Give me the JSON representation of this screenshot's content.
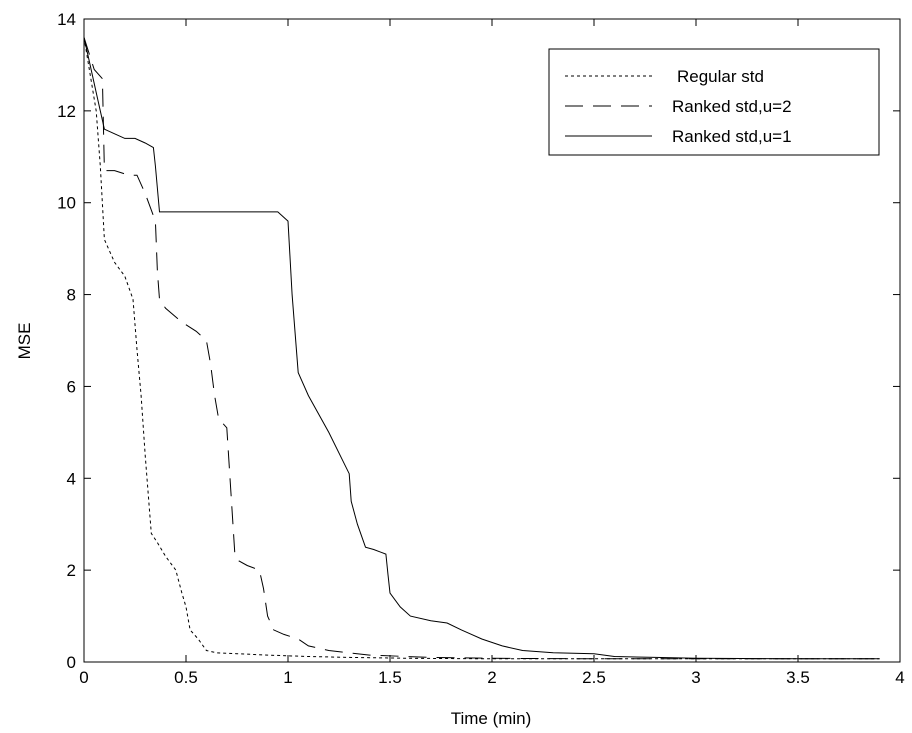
{
  "chart_data": {
    "type": "line",
    "xlabel": "Time (min)",
    "ylabel": "MSE",
    "xlim": [
      0,
      4
    ],
    "ylim": [
      0,
      14
    ],
    "x_ticks": [
      0,
      0.5,
      1,
      1.5,
      2,
      2.5,
      3,
      3.5,
      4
    ],
    "x_tick_labels": [
      "0",
      "0.5",
      "1",
      "1.5",
      "2",
      "2.5",
      "3",
      "3.5",
      "4"
    ],
    "y_ticks": [
      0,
      2,
      4,
      6,
      8,
      10,
      12,
      14
    ],
    "y_tick_labels": [
      "0",
      "2",
      "4",
      "6",
      "8",
      "10",
      "12",
      "14"
    ],
    "grid": false,
    "legend_position": "top-right",
    "series": [
      {
        "name": "Regular std",
        "line_style": "dotted",
        "color": "#000000",
        "x": [
          0,
          0.03,
          0.06,
          0.08,
          0.1,
          0.15,
          0.2,
          0.24,
          0.26,
          0.28,
          0.3,
          0.33,
          0.36,
          0.4,
          0.45,
          0.48,
          0.5,
          0.52,
          0.56,
          0.6,
          0.65,
          0.75,
          0.9,
          1.1,
          1.3,
          1.6,
          2.0,
          2.5,
          3.0,
          3.5,
          3.9
        ],
        "y": [
          13.6,
          12.8,
          12.0,
          10.8,
          9.2,
          8.7,
          8.4,
          7.9,
          6.8,
          5.8,
          4.5,
          2.8,
          2.6,
          2.3,
          2.0,
          1.5,
          1.2,
          0.7,
          0.5,
          0.25,
          0.2,
          0.18,
          0.15,
          0.12,
          0.1,
          0.08,
          0.07,
          0.07,
          0.07,
          0.07,
          0.07
        ]
      },
      {
        "name": "Ranked std,u=2",
        "line_style": "dashed",
        "color": "#000000",
        "x": [
          0,
          0.05,
          0.09,
          0.1,
          0.15,
          0.22,
          0.26,
          0.3,
          0.35,
          0.36,
          0.37,
          0.4,
          0.48,
          0.55,
          0.6,
          0.62,
          0.64,
          0.66,
          0.7,
          0.72,
          0.74,
          0.76,
          0.8,
          0.86,
          0.88,
          0.9,
          0.93,
          0.98,
          1.05,
          1.1,
          1.2,
          1.4,
          1.7,
          2.0,
          2.5,
          3.0,
          3.9
        ],
        "y": [
          13.6,
          12.9,
          12.7,
          10.7,
          10.7,
          10.6,
          10.6,
          10.2,
          9.6,
          8.5,
          7.9,
          7.7,
          7.4,
          7.2,
          7.0,
          6.5,
          5.8,
          5.3,
          5.1,
          3.7,
          2.3,
          2.2,
          2.1,
          2.0,
          1.6,
          1.0,
          0.7,
          0.6,
          0.5,
          0.35,
          0.25,
          0.15,
          0.1,
          0.08,
          0.07,
          0.07,
          0.07
        ]
      },
      {
        "name": "Ranked std,u=1",
        "line_style": "solid",
        "color": "#000000",
        "x": [
          0,
          0.03,
          0.06,
          0.08,
          0.1,
          0.15,
          0.2,
          0.25,
          0.3,
          0.34,
          0.35,
          0.37,
          0.4,
          0.5,
          0.6,
          0.7,
          0.8,
          0.9,
          0.95,
          1.0,
          1.02,
          1.05,
          1.1,
          1.2,
          1.3,
          1.31,
          1.34,
          1.38,
          1.42,
          1.45,
          1.48,
          1.49,
          1.5,
          1.55,
          1.6,
          1.7,
          1.78,
          1.85,
          1.95,
          2.05,
          2.15,
          2.3,
          2.5,
          2.6,
          2.8,
          3.0,
          3.5,
          3.9
        ],
        "y": [
          13.6,
          13.0,
          12.4,
          12.0,
          11.6,
          11.5,
          11.4,
          11.4,
          11.3,
          11.2,
          10.8,
          9.8,
          9.8,
          9.8,
          9.8,
          9.8,
          9.8,
          9.8,
          9.8,
          9.6,
          8.0,
          6.3,
          5.8,
          5.0,
          4.1,
          3.5,
          3.0,
          2.5,
          2.45,
          2.4,
          2.35,
          1.9,
          1.5,
          1.2,
          1.0,
          0.9,
          0.85,
          0.7,
          0.5,
          0.35,
          0.25,
          0.2,
          0.18,
          0.12,
          0.1,
          0.08,
          0.07,
          0.07
        ]
      }
    ]
  }
}
